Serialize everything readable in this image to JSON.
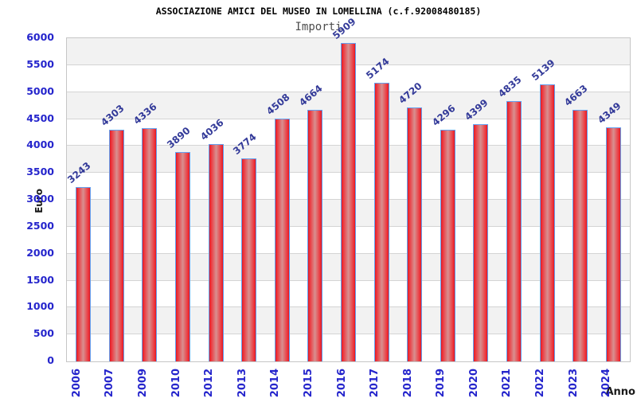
{
  "chart_data": {
    "type": "bar",
    "title": "ASSOCIAZIONE AMICI DEL MUSEO IN LOMELLINA (c.f.92008480185)",
    "subtitle": "Importi",
    "xlabel": "Anno",
    "ylabel": "Euro",
    "categories": [
      "2006",
      "2007",
      "2009",
      "2010",
      "2012",
      "2013",
      "2014",
      "2015",
      "2016",
      "2017",
      "2018",
      "2019",
      "2020",
      "2021",
      "2022",
      "2023",
      "2024"
    ],
    "values": [
      3243,
      4303,
      4336,
      3890,
      4036,
      3774,
      4508,
      4664,
      5909,
      5174,
      4720,
      4296,
      4399,
      4835,
      5139,
      4663,
      4349
    ],
    "ylim": [
      0,
      6000
    ],
    "ytick_step": 500,
    "grid": true,
    "legend": "none",
    "colors": {
      "bar_edge": "#64a0f0",
      "bar_fill_dark": "#dd1a22",
      "bar_fill_bright": "#ee3038",
      "bar_fill_mid": "#d89090",
      "tick_label": "#2525cc",
      "value_label": "#333a99",
      "band_light": "#ffffff",
      "band_dark": "#f2f2f2",
      "gridline": "#d4d4d4",
      "title_color": "#000000",
      "subtitle_color": "#4d4d4d",
      "axis_label_color": "#1a1a1a"
    }
  }
}
